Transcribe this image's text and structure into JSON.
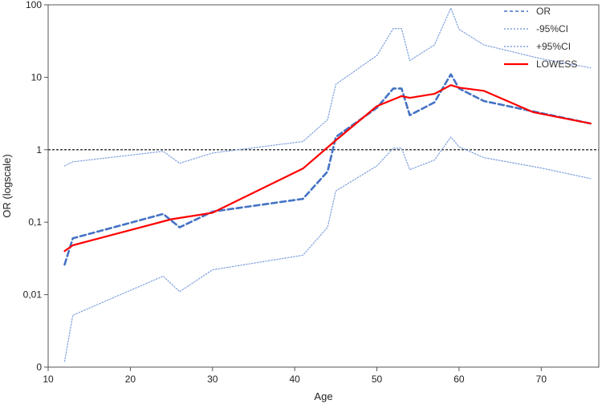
{
  "chart_data": {
    "type": "line",
    "title": "",
    "xlabel": "Age",
    "ylabel": "OR (logscale)",
    "y_scale": "log",
    "xlim": [
      10,
      77
    ],
    "ylim": [
      0.001,
      100
    ],
    "x_ticks": [
      10,
      20,
      30,
      40,
      50,
      60,
      70
    ],
    "y_ticks": [
      {
        "value": 100,
        "label": "100"
      },
      {
        "value": 10,
        "label": "10"
      },
      {
        "value": 1,
        "label": "1"
      },
      {
        "value": 0.1,
        "label": "0,1"
      },
      {
        "value": 0.01,
        "label": "0,01"
      },
      {
        "value": 0.001,
        "label": "0"
      }
    ],
    "reference_line": {
      "y": 1,
      "style": "dashed",
      "color": "#000000"
    },
    "legend_position": "top-right",
    "series": [
      {
        "name": "OR",
        "style": "dashed",
        "color": "#4472c4",
        "points": [
          [
            12,
            0.026
          ],
          [
            13,
            0.06
          ],
          [
            24,
            0.13
          ],
          [
            26,
            0.085
          ],
          [
            30,
            0.14
          ],
          [
            41,
            0.21
          ],
          [
            44,
            0.5
          ],
          [
            45,
            1.5
          ],
          [
            50,
            3.8
          ],
          [
            52,
            7.0
          ],
          [
            53,
            7.0
          ],
          [
            54,
            3.0
          ],
          [
            57,
            4.5
          ],
          [
            59,
            11
          ],
          [
            60,
            7.0
          ],
          [
            63,
            4.7
          ],
          [
            70,
            3.2
          ],
          [
            76,
            2.3
          ]
        ]
      },
      {
        "name": "-95%CI",
        "style": "dotted",
        "color": "#7fa0dd",
        "points": [
          [
            12,
            0.0012
          ],
          [
            13,
            0.0052
          ],
          [
            24,
            0.018
          ],
          [
            26,
            0.011
          ],
          [
            30,
            0.022
          ],
          [
            41,
            0.035
          ],
          [
            44,
            0.085
          ],
          [
            45,
            0.27
          ],
          [
            50,
            0.6
          ],
          [
            52,
            1.05
          ],
          [
            53,
            1.05
          ],
          [
            54,
            0.53
          ],
          [
            57,
            0.72
          ],
          [
            59,
            1.5
          ],
          [
            60,
            1.1
          ],
          [
            63,
            0.78
          ],
          [
            70,
            0.56
          ],
          [
            76,
            0.4
          ]
        ]
      },
      {
        "name": "+95%CI",
        "style": "dotted",
        "color": "#7fa0dd",
        "points": [
          [
            12,
            0.6
          ],
          [
            13,
            0.68
          ],
          [
            24,
            0.95
          ],
          [
            26,
            0.65
          ],
          [
            30,
            0.9
          ],
          [
            41,
            1.3
          ],
          [
            44,
            2.6
          ],
          [
            45,
            8.0
          ],
          [
            50,
            20
          ],
          [
            52,
            47
          ],
          [
            53,
            47
          ],
          [
            54,
            17
          ],
          [
            57,
            28
          ],
          [
            59,
            90
          ],
          [
            60,
            46
          ],
          [
            63,
            28
          ],
          [
            70,
            18
          ],
          [
            76,
            13.5
          ]
        ]
      },
      {
        "name": "LOWESS",
        "style": "solid",
        "color": "#ff0000",
        "points": [
          [
            12,
            0.04
          ],
          [
            13,
            0.048
          ],
          [
            25,
            0.11
          ],
          [
            30,
            0.135
          ],
          [
            41,
            0.55
          ],
          [
            45,
            1.35
          ],
          [
            50,
            4.0
          ],
          [
            53,
            5.5
          ],
          [
            54,
            5.2
          ],
          [
            57,
            5.9
          ],
          [
            59,
            7.8
          ],
          [
            60,
            7.2
          ],
          [
            63,
            6.5
          ],
          [
            69,
            3.3
          ],
          [
            76,
            2.3
          ]
        ]
      }
    ]
  }
}
